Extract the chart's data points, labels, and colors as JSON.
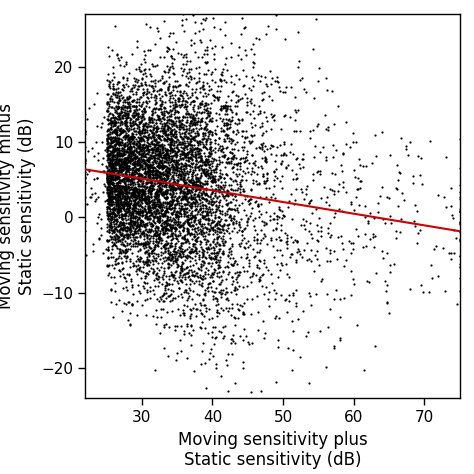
{
  "xlabel_line1": "Moving sensitivity plus",
  "xlabel_line2": "Static sensitivity (dB)",
  "ylabel_line2": "Static sensitivity (dB)",
  "xlim": [
    22,
    75
  ],
  "ylim": [
    -24,
    27
  ],
  "xticks": [
    30,
    40,
    50,
    60,
    70
  ],
  "yticks": [
    -20,
    -10,
    0,
    10,
    20
  ],
  "dot_color": "#000000",
  "dot_size": 2.5,
  "line_color": "#cc0000",
  "line_slope": -0.155,
  "line_intercept": 9.8,
  "line_x_start": 22,
  "line_x_end": 75,
  "n_points": 5000,
  "seed": 7,
  "bg_color": "#ffffff",
  "tick_fontsize": 11,
  "label_fontsize": 12
}
